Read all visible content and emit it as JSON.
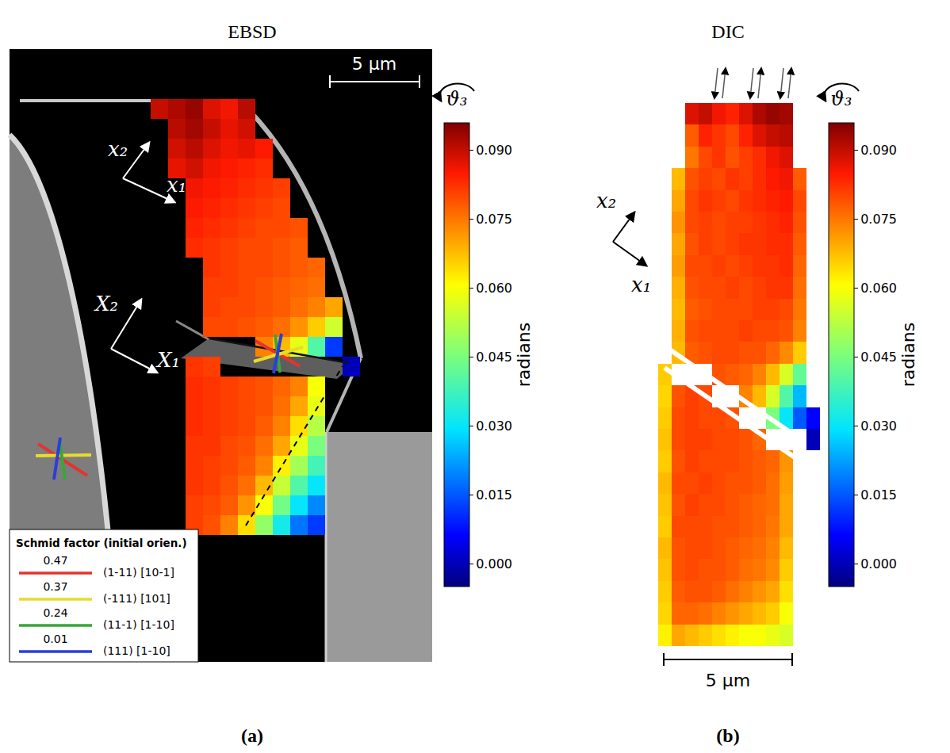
{
  "chart_data": [
    {
      "type": "heatmap",
      "title": "EBSD",
      "panel_label": "(a)",
      "scale_bar": "5 µm",
      "tick_labels": false,
      "axis_labels": [
        "x₂",
        "x₁",
        "X₂",
        "X₁"
      ],
      "colorbar": {
        "title": "radians",
        "symbol": "ϑ₃",
        "range": [
          -0.005,
          0.096
        ],
        "ticks": [
          {
            "value": 0,
            "label": "0.000"
          },
          {
            "value": 0.015,
            "label": "0.015"
          },
          {
            "value": 0.03,
            "label": "0.030"
          },
          {
            "value": 0.045,
            "label": "0.045"
          },
          {
            "value": 0.06,
            "label": "0.060"
          },
          {
            "value": 0.075,
            "label": "0.075"
          },
          {
            "value": 0.09,
            "label": "0.090"
          }
        ]
      },
      "schmid_table": {
        "title": "Schmid factor (initial orien.)",
        "rows": [
          {
            "value": 0.47,
            "color": "#e3342f",
            "label": "(1-11) [10-1]"
          },
          {
            "value": 0.37,
            "color": "#e6dc2c",
            "label": "(-111) [101]"
          },
          {
            "value": 0.24,
            "color": "#3aa53a",
            "label": "(11-1) [1-10]"
          },
          {
            "value": 0.01,
            "color": "#2b3ed8",
            "label": "(111) [1-10]"
          }
        ]
      },
      "cells": [
        [
          0.09,
          0.092,
          0.094,
          0.088,
          0.086,
          0.091,
          null,
          null,
          null,
          null,
          null,
          null
        ],
        [
          null,
          0.091,
          0.093,
          0.09,
          0.087,
          0.089,
          null,
          null,
          null,
          null,
          null,
          null
        ],
        [
          null,
          0.089,
          0.091,
          0.088,
          0.086,
          0.087,
          0.085,
          null,
          null,
          null,
          null,
          null
        ],
        [
          null,
          0.087,
          0.089,
          0.086,
          0.085,
          0.084,
          0.083,
          null,
          null,
          null,
          null,
          null
        ],
        [
          null,
          null,
          0.086,
          0.085,
          0.084,
          0.083,
          0.082,
          0.081,
          null,
          null,
          null,
          null
        ],
        [
          null,
          null,
          0.085,
          0.084,
          0.083,
          0.082,
          0.081,
          0.08,
          null,
          null,
          null,
          null
        ],
        [
          null,
          null,
          0.084,
          0.083,
          0.082,
          0.081,
          0.08,
          0.08,
          0.079,
          null,
          null,
          null
        ],
        [
          null,
          null,
          0.083,
          0.082,
          0.081,
          0.08,
          0.08,
          0.079,
          0.078,
          null,
          null,
          null
        ],
        [
          null,
          null,
          null,
          0.082,
          0.081,
          0.08,
          0.08,
          0.079,
          0.078,
          0.077,
          null,
          null
        ],
        [
          null,
          null,
          null,
          0.081,
          0.081,
          0.08,
          0.079,
          0.078,
          0.077,
          0.076,
          null,
          null
        ],
        [
          null,
          null,
          null,
          0.081,
          0.08,
          0.08,
          0.079,
          0.078,
          0.076,
          0.074,
          0.07,
          null
        ],
        [
          null,
          null,
          null,
          0.08,
          0.08,
          0.079,
          0.078,
          0.076,
          0.072,
          0.066,
          0.055,
          null
        ],
        [
          null,
          null,
          null,
          null,
          null,
          null,
          0.074,
          0.068,
          0.058,
          0.04,
          0.012,
          null
        ],
        [
          null,
          null,
          0.082,
          0.081,
          null,
          null,
          null,
          null,
          null,
          null,
          null,
          0
        ],
        [
          null,
          null,
          0.083,
          0.082,
          0.081,
          0.08,
          0.079,
          0.077,
          0.074,
          0.06,
          null,
          null
        ],
        [
          null,
          null,
          0.083,
          0.082,
          0.081,
          0.08,
          0.079,
          0.076,
          0.07,
          0.058,
          null,
          null
        ],
        [
          null,
          null,
          0.083,
          0.082,
          0.081,
          0.08,
          0.078,
          0.074,
          0.064,
          0.052,
          null,
          null
        ],
        [
          null,
          null,
          0.082,
          0.082,
          0.08,
          0.079,
          0.076,
          0.07,
          0.058,
          0.045,
          null,
          null
        ],
        [
          null,
          null,
          0.082,
          0.081,
          0.08,
          0.078,
          0.074,
          0.062,
          0.05,
          0.038,
          null,
          null
        ],
        [
          null,
          null,
          0.082,
          0.081,
          0.079,
          0.076,
          0.068,
          0.054,
          0.04,
          0.03,
          null,
          null
        ],
        [
          null,
          null,
          0.081,
          0.08,
          0.078,
          0.072,
          0.06,
          0.044,
          0.03,
          0.02,
          null,
          null
        ],
        [
          null,
          null,
          0.081,
          0.079,
          0.074,
          0.064,
          0.048,
          0.032,
          0.018,
          0.012,
          null,
          null
        ]
      ]
    },
    {
      "type": "heatmap",
      "title": "DIC",
      "panel_label": "(b)",
      "scale_bar": "5 µm",
      "tick_labels": false,
      "axis_labels": [
        "x₂",
        "x₁"
      ],
      "colorbar": {
        "title": "radians",
        "symbol": "ϑ₃",
        "range": [
          -0.005,
          0.096
        ],
        "ticks": [
          {
            "value": 0,
            "label": "0.000"
          },
          {
            "value": 0.015,
            "label": "0.015"
          },
          {
            "value": 0.03,
            "label": "0.030"
          },
          {
            "value": 0.045,
            "label": "0.045"
          },
          {
            "value": 0.06,
            "label": "0.060"
          },
          {
            "value": 0.075,
            "label": "0.075"
          },
          {
            "value": 0.09,
            "label": "0.090"
          }
        ]
      },
      "cells": [
        [
          null,
          null,
          0.088,
          0.09,
          0.086,
          0.084,
          0.088,
          0.092,
          0.094,
          0.093,
          null,
          null
        ],
        [
          null,
          null,
          0.078,
          0.084,
          0.082,
          0.08,
          0.084,
          0.088,
          0.09,
          0.091,
          null,
          null
        ],
        [
          null,
          null,
          0.075,
          0.08,
          0.082,
          0.079,
          0.081,
          0.083,
          0.086,
          0.088,
          null,
          null
        ],
        [
          null,
          0.068,
          0.079,
          0.081,
          0.08,
          0.082,
          0.081,
          0.083,
          0.085,
          0.086,
          0.078,
          null
        ],
        [
          null,
          0.07,
          0.08,
          0.082,
          0.081,
          0.08,
          0.082,
          0.083,
          0.084,
          0.085,
          0.08,
          null
        ],
        [
          null,
          0.072,
          0.08,
          0.081,
          0.08,
          0.081,
          0.081,
          0.082,
          0.083,
          0.084,
          0.079,
          null
        ],
        [
          null,
          0.07,
          0.079,
          0.081,
          0.08,
          0.081,
          0.082,
          0.082,
          0.083,
          0.083,
          0.078,
          null
        ],
        [
          null,
          0.071,
          0.08,
          0.08,
          0.081,
          0.08,
          0.081,
          0.082,
          0.082,
          0.083,
          0.077,
          null
        ],
        [
          null,
          0.069,
          0.079,
          0.08,
          0.08,
          0.081,
          0.08,
          0.081,
          0.082,
          0.082,
          0.076,
          null
        ],
        [
          null,
          0.068,
          0.078,
          0.079,
          0.08,
          0.08,
          0.08,
          0.081,
          0.081,
          0.08,
          0.075,
          null
        ],
        [
          null,
          0.069,
          0.079,
          0.08,
          0.08,
          0.08,
          0.081,
          0.08,
          0.08,
          0.079,
          0.074,
          null
        ],
        [
          null,
          0.068,
          0.078,
          0.079,
          0.08,
          0.08,
          0.079,
          0.079,
          0.077,
          0.073,
          0.066,
          null
        ],
        [
          0.066,
          null,
          null,
          null,
          0.079,
          0.078,
          0.077,
          0.074,
          0.068,
          0.056,
          0.042,
          null
        ],
        [
          0.065,
          0.079,
          0.081,
          0.08,
          null,
          null,
          0.074,
          0.068,
          0.056,
          0.04,
          0.025,
          null
        ],
        [
          0.066,
          0.08,
          0.081,
          0.08,
          0.08,
          0.079,
          null,
          null,
          0.045,
          0.03,
          0.015,
          0.006
        ],
        [
          0.067,
          0.08,
          0.081,
          0.081,
          0.08,
          0.08,
          0.079,
          0.077,
          null,
          null,
          null,
          0
        ],
        [
          0.066,
          0.079,
          0.081,
          0.08,
          0.08,
          0.08,
          0.079,
          0.078,
          0.077,
          0.072,
          null,
          null
        ],
        [
          0.068,
          0.08,
          0.08,
          0.081,
          0.08,
          0.079,
          0.079,
          0.078,
          0.076,
          0.071,
          null,
          null
        ],
        [
          0.067,
          0.079,
          0.081,
          0.08,
          0.08,
          0.079,
          0.078,
          0.077,
          0.076,
          0.07,
          null,
          null
        ],
        [
          0.066,
          0.08,
          0.08,
          0.08,
          0.079,
          0.079,
          0.078,
          0.077,
          0.075,
          0.07,
          null,
          null
        ],
        [
          0.068,
          0.079,
          0.08,
          0.08,
          0.079,
          0.078,
          0.077,
          0.076,
          0.074,
          0.068,
          null,
          null
        ],
        [
          0.067,
          0.079,
          0.08,
          0.079,
          0.079,
          0.078,
          0.076,
          0.075,
          0.073,
          0.066,
          null,
          null
        ],
        [
          0.066,
          0.078,
          0.079,
          0.079,
          0.078,
          0.076,
          0.074,
          0.072,
          0.07,
          0.064,
          null,
          null
        ],
        [
          0.065,
          0.077,
          0.077,
          0.076,
          0.074,
          0.072,
          0.07,
          0.068,
          0.066,
          0.06,
          null,
          null
        ],
        [
          0.062,
          0.07,
          0.068,
          0.066,
          0.064,
          0.062,
          0.06,
          0.06,
          0.058,
          0.056,
          null,
          null
        ]
      ]
    }
  ]
}
